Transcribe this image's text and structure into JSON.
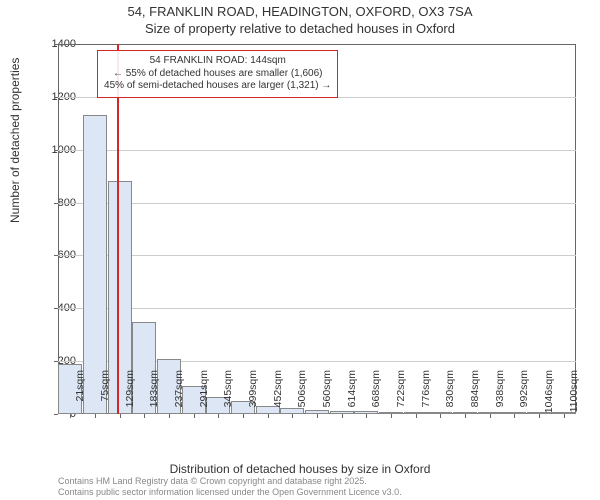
{
  "title_line1": "54, FRANKLIN ROAD, HEADINGTON, OXFORD, OX3 7SA",
  "title_line2": "Size of property relative to detached houses in Oxford",
  "chart": {
    "type": "histogram",
    "ylabel": "Number of detached properties",
    "xlabel": "Distribution of detached houses by size in Oxford",
    "ylim": [
      0,
      1400
    ],
    "ytick_step": 200,
    "yticks": [
      0,
      200,
      400,
      600,
      800,
      1000,
      1200,
      1400
    ],
    "xtick_labels": [
      "21sqm",
      "75sqm",
      "129sqm",
      "183sqm",
      "237sqm",
      "291sqm",
      "345sqm",
      "399sqm",
      "452sqm",
      "506sqm",
      "560sqm",
      "614sqm",
      "668sqm",
      "722sqm",
      "776sqm",
      "830sqm",
      "884sqm",
      "938sqm",
      "992sqm",
      "1046sqm",
      "1100sqm"
    ],
    "bar_values": [
      190,
      1130,
      880,
      350,
      210,
      105,
      65,
      50,
      30,
      22,
      14,
      12,
      10,
      8,
      4,
      5,
      2,
      2,
      5,
      1,
      1
    ],
    "bar_color": "#dce6f5",
    "bar_border_color": "#888888",
    "grid_color": "#cccccc",
    "background_color": "#ffffff",
    "axis_color": "#666666",
    "marker": {
      "value_sqm": 144,
      "x_range": [
        21,
        1100
      ],
      "color": "#d62728"
    },
    "annotation": {
      "line1": "54 FRANKLIN ROAD: 144sqm",
      "line2": "← 55% of detached houses are smaller (1,606)",
      "line3": "45% of semi-detached houses are larger (1,321) →",
      "border_color": "#d62728",
      "background_color": "rgba(255,255,255,0.9)",
      "fontsize": 10
    },
    "title_fontsize": 13,
    "label_fontsize": 12,
    "tick_fontsize": 11
  },
  "footer": {
    "line1": "Contains HM Land Registry data © Crown copyright and database right 2025.",
    "line2": "Contains public sector information licensed under the Open Government Licence v3.0.",
    "color": "#888888",
    "fontsize": 9
  }
}
